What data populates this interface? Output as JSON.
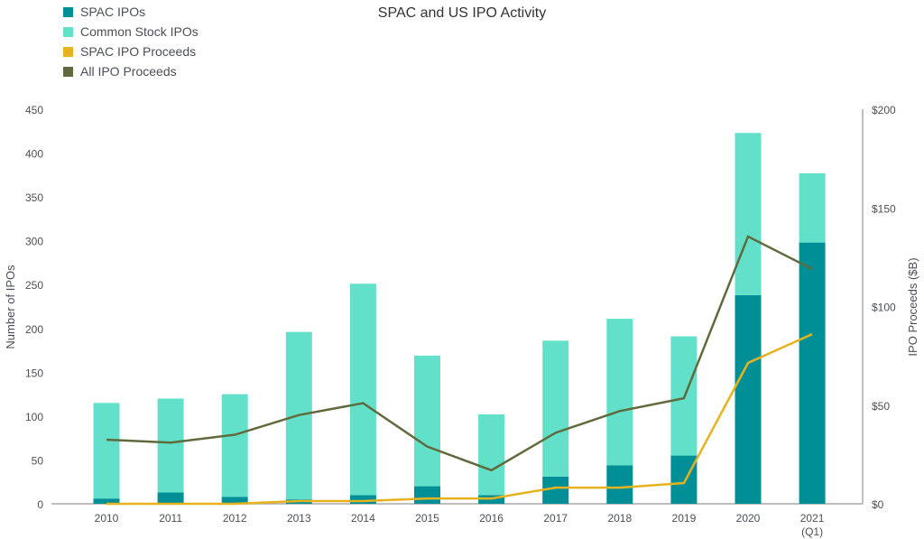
{
  "chart_data": {
    "type": "bar",
    "title": "SPAC and US IPO Activity",
    "categories": [
      "2010",
      "2011",
      "2012",
      "2013",
      "2014",
      "2015",
      "2016",
      "2017",
      "2018",
      "2019",
      "2020",
      "2021\n(Q1)"
    ],
    "ylabel": "Number of IPOs",
    "y2label": "IPO Proceeds ($B)",
    "ylim": [
      0,
      450
    ],
    "y2lim": [
      0,
      200
    ],
    "yticks": [
      "0",
      "50",
      "100",
      "150",
      "200",
      "250",
      "300",
      "350",
      "400",
      "450"
    ],
    "y2ticks": [
      "$0",
      "$50",
      "$100",
      "$150",
      "$200"
    ],
    "legend_position": "top-left",
    "series": [
      {
        "name": "SPAC IPOs",
        "kind": "bar-stacked",
        "axis": "left",
        "color": "#008f96",
        "values": [
          6,
          13,
          8,
          5,
          10,
          20,
          10,
          31,
          44,
          55,
          238,
          298
        ]
      },
      {
        "name": "Common Stock IPOs",
        "kind": "bar-stacked",
        "axis": "left",
        "color": "#63e0c9",
        "values": [
          109,
          107,
          117,
          191,
          241,
          149,
          92,
          155,
          167,
          136,
          185,
          79
        ]
      },
      {
        "name": "SPAC IPO Proceeds",
        "kind": "line",
        "axis": "right",
        "color": "#e6b31e",
        "values": [
          0,
          0,
          0,
          1.4,
          1.4,
          2.7,
          2.7,
          8.2,
          8.2,
          10.5,
          71.4,
          86
        ]
      },
      {
        "name": "All IPO Proceeds",
        "kind": "line",
        "axis": "right",
        "color": "#5f6b3c",
        "values": [
          32.5,
          31,
          35,
          45,
          51,
          29,
          17,
          36,
          47,
          53.5,
          135.5,
          119
        ]
      }
    ]
  }
}
